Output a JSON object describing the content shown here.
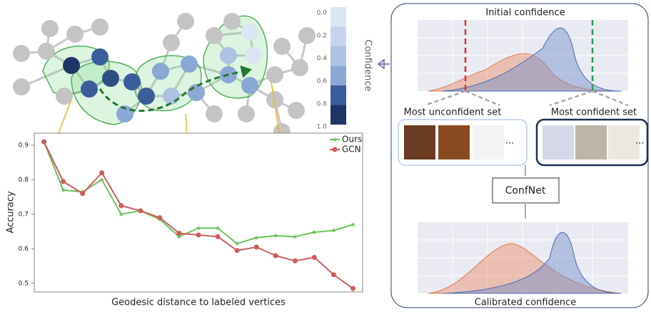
{
  "graph": {
    "colorbar": {
      "ticks": [
        "0.0",
        "0.2",
        "0.4",
        "0.6",
        "0.8",
        "1.0"
      ],
      "label": "Confidence"
    }
  },
  "chart_data": {
    "type": "line",
    "xlabel": "Geodesic distance to labeled vertices",
    "ylabel": "Accuracy",
    "categories": [
      null,
      null,
      null,
      null,
      null,
      null,
      null,
      null,
      null,
      null,
      null,
      null,
      null,
      null,
      null,
      null,
      null
    ],
    "series": [
      {
        "name": "Ours",
        "color": "#6cc45a",
        "marker": "star",
        "values": [
          0.91,
          0.77,
          0.765,
          0.8,
          0.7,
          0.71,
          0.685,
          0.635,
          0.66,
          0.66,
          0.615,
          0.632,
          0.638,
          0.635,
          0.648,
          0.653,
          0.67
        ]
      },
      {
        "name": "GCN",
        "color": "#d05a5a",
        "marker": "circle",
        "values": [
          0.91,
          0.795,
          0.76,
          0.82,
          0.725,
          0.71,
          0.69,
          0.645,
          0.64,
          0.635,
          0.595,
          0.605,
          0.58,
          0.565,
          0.575,
          0.525,
          0.485
        ]
      }
    ],
    "ylim": [
      0.475,
      0.935
    ],
    "yticks": [
      0.5,
      0.6,
      0.7,
      0.8,
      0.9
    ],
    "legend": "upper right",
    "grid": false
  },
  "pipeline": {
    "top_title": "Initial confidence",
    "unconfident": "Most unconfident set",
    "confident": "Most confident set",
    "ellipsis": "...",
    "model": "ConfNet",
    "bottom_title": "Calibrated confidence"
  }
}
